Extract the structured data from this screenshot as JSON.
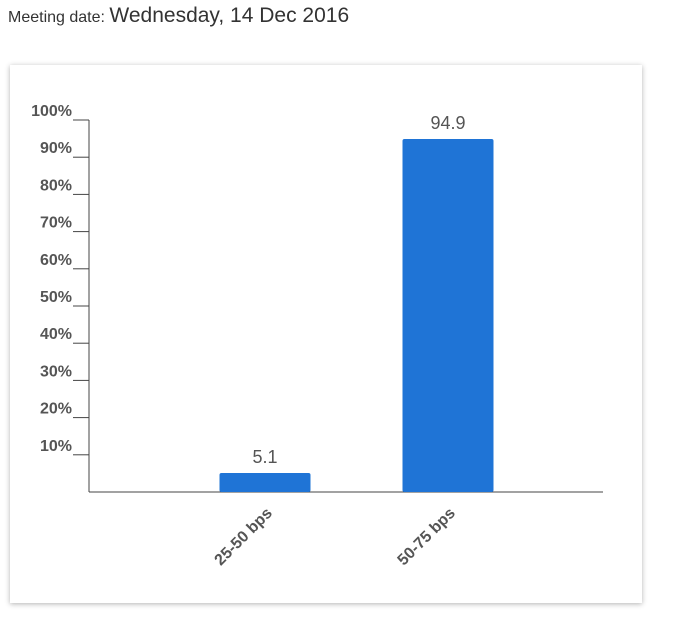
{
  "header": {
    "label": "Meeting date:",
    "date": "Wednesday, 14 Dec 2016"
  },
  "chart_data": {
    "type": "bar",
    "categories": [
      "25-50 bps",
      "50-75 bps"
    ],
    "values": [
      5.1,
      94.9
    ],
    "color": "#1f74d6",
    "ylim": [
      0,
      100
    ],
    "yticks": [
      {
        "value": 10,
        "label": "10%"
      },
      {
        "value": 20,
        "label": "20%"
      },
      {
        "value": 30,
        "label": "30%"
      },
      {
        "value": 40,
        "label": "40%"
      },
      {
        "value": 50,
        "label": "50%"
      },
      {
        "value": 60,
        "label": "60%"
      },
      {
        "value": 70,
        "label": "70%"
      },
      {
        "value": 80,
        "label": "80%"
      },
      {
        "value": 90,
        "label": "90%"
      },
      {
        "value": 100,
        "label": "100%"
      }
    ]
  }
}
